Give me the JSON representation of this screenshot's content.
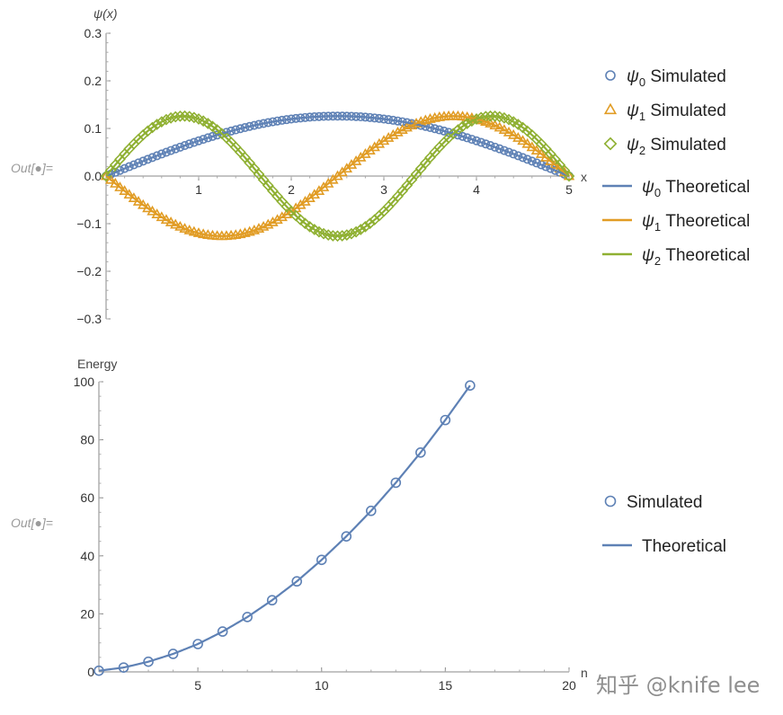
{
  "cells": [
    {
      "prompt": "Out[●]="
    },
    {
      "prompt": "Out[●]="
    }
  ],
  "watermark": "知乎 @knife lee",
  "colors": {
    "blue": "#5E81B5",
    "orange": "#E19C24",
    "green": "#8FB032"
  },
  "chart_data": [
    {
      "type": "line",
      "xlabel": "x",
      "ylabel": "ψ(x)",
      "xlim": [
        0,
        5
      ],
      "ylim": [
        -0.3,
        0.3
      ],
      "x_ticks": [
        "1",
        "2",
        "3",
        "4",
        "5"
      ],
      "y_ticks": [
        "0.3",
        "0.2",
        "0.1",
        "0.0",
        "−0.1",
        "−0.2",
        "−0.3"
      ],
      "legend_position": "right",
      "amplitude": 0.126,
      "series": [
        {
          "name": "Simulated",
          "sub": "0",
          "mode": "0",
          "kind": "markers",
          "marker": "circle",
          "color": "#5E81B5"
        },
        {
          "name": "Simulated",
          "sub": "1",
          "mode": "1",
          "kind": "markers",
          "marker": "triangle",
          "color": "#E19C24"
        },
        {
          "name": "Simulated",
          "sub": "2",
          "mode": "2",
          "kind": "markers",
          "marker": "diamond",
          "color": "#8FB032"
        },
        {
          "name": "Theoretical",
          "sub": "0",
          "mode": "0",
          "kind": "line",
          "color": "#5E81B5"
        },
        {
          "name": "Theoretical",
          "sub": "1",
          "mode": "1",
          "kind": "line",
          "color": "#E19C24"
        },
        {
          "name": "Theoretical",
          "sub": "2",
          "mode": "2",
          "kind": "line",
          "color": "#8FB032"
        }
      ]
    },
    {
      "type": "scatter",
      "xlabel": "n",
      "ylabel": "Energy",
      "xlim": [
        1,
        20
      ],
      "ylim": [
        0,
        100
      ],
      "x_ticks": [
        "5",
        "10",
        "15",
        "20"
      ],
      "y_ticks": [
        "0",
        "20",
        "40",
        "60",
        "80",
        "100"
      ],
      "legend_position": "right",
      "series": [
        {
          "name": "Simulated",
          "kind": "markers",
          "color": "#5E81B5",
          "x": [
            1,
            2,
            3,
            4,
            5,
            6,
            7,
            8,
            9,
            10,
            11,
            12,
            13,
            14,
            15,
            16
          ],
          "y": [
            0.4,
            1.5,
            3.5,
            6.2,
            9.6,
            13.9,
            18.9,
            24.7,
            31.2,
            38.6,
            46.7,
            55.5,
            65.2,
            75.6,
            86.8,
            98.7
          ]
        },
        {
          "name": "Theoretical",
          "kind": "line",
          "color": "#5E81B5",
          "x": [
            1,
            2,
            3,
            4,
            5,
            6,
            7,
            8,
            9,
            10,
            11,
            12,
            13,
            14,
            15,
            16
          ],
          "y": [
            0.4,
            1.5,
            3.5,
            6.2,
            9.6,
            13.9,
            18.9,
            24.7,
            31.2,
            38.6,
            46.7,
            55.5,
            65.2,
            75.6,
            86.8,
            98.7
          ]
        }
      ]
    }
  ]
}
